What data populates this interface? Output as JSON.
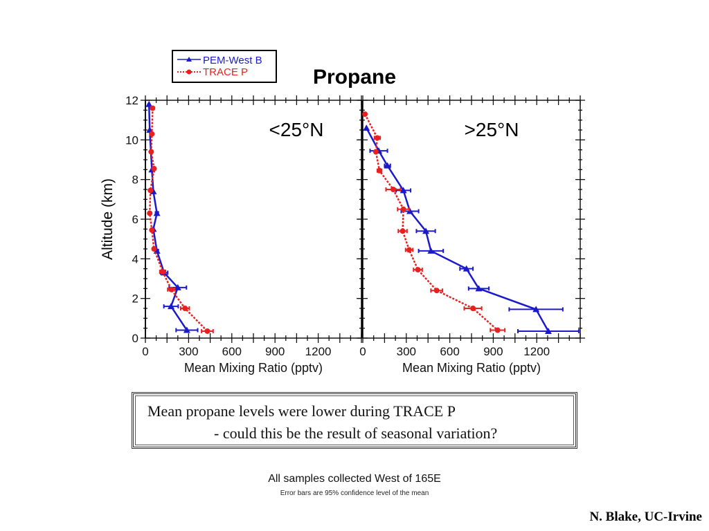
{
  "slide": {
    "title": "Propane",
    "note_line1": "Mean propane levels were lower during TRACE P",
    "note_line2": "- could this be the result of seasonal variation?",
    "footer_main": "All samples collected West of 165E",
    "footer_sub": "Error bars are 95% confidence level of the mean",
    "credit": "N. Blake, UC-Irvine"
  },
  "chart_data": [
    {
      "type": "line",
      "panel_label": "<25°N",
      "xlabel": "Mean Mixing Ratio (pptv)",
      "ylabel": "Altitude (km)",
      "xlim": [
        0,
        1500
      ],
      "ylim": [
        0,
        12
      ],
      "x_ticks": [
        0,
        300,
        600,
        900,
        1200
      ],
      "y_ticks": [
        0,
        2,
        4,
        6,
        8,
        10,
        12
      ],
      "legend": [
        {
          "name": "PEM-West B",
          "color": "#1a1acc",
          "marker": "triangle",
          "style": "solid"
        },
        {
          "name": "TRACE P",
          "color": "#e82020",
          "marker": "circle",
          "style": "dotted"
        }
      ],
      "legend_position": "top-left",
      "series": [
        {
          "name": "PEM-West B",
          "color": "#1a1acc",
          "points": [
            {
              "x": 25,
              "y": 11.8,
              "err": 0
            },
            {
              "x": 30,
              "y": 10.5,
              "err": 0
            },
            {
              "x": 45,
              "y": 8.5,
              "err": 0
            },
            {
              "x": 55,
              "y": 7.4,
              "err": 0
            },
            {
              "x": 80,
              "y": 6.3,
              "err": 10
            },
            {
              "x": 55,
              "y": 5.5,
              "err": 0
            },
            {
              "x": 80,
              "y": 4.4,
              "err": 10
            },
            {
              "x": 130,
              "y": 3.3,
              "err": 25
            },
            {
              "x": 225,
              "y": 2.55,
              "err": 60
            },
            {
              "x": 178,
              "y": 1.6,
              "err": 50
            },
            {
              "x": 288,
              "y": 0.4,
              "err": 75
            }
          ]
        },
        {
          "name": "TRACE P",
          "color": "#e82020",
          "points": [
            {
              "x": 50,
              "y": 11.6,
              "err": 10
            },
            {
              "x": 45,
              "y": 10.3,
              "err": 0
            },
            {
              "x": 40,
              "y": 9.4,
              "err": 0
            },
            {
              "x": 60,
              "y": 8.55,
              "err": 0
            },
            {
              "x": 35,
              "y": 7.45,
              "err": 0
            },
            {
              "x": 30,
              "y": 6.3,
              "err": 0
            },
            {
              "x": 45,
              "y": 5.45,
              "err": 0
            },
            {
              "x": 60,
              "y": 4.5,
              "err": 0
            },
            {
              "x": 120,
              "y": 3.35,
              "err": 20
            },
            {
              "x": 180,
              "y": 2.45,
              "err": 25
            },
            {
              "x": 275,
              "y": 1.5,
              "err": 30
            },
            {
              "x": 430,
              "y": 0.35,
              "err": 40
            }
          ]
        }
      ]
    },
    {
      "type": "line",
      "panel_label": ">25°N",
      "xlabel": "Mean Mixing Ratio (pptv)",
      "ylabel": "Altitude (km)",
      "xlim": [
        0,
        1500
      ],
      "ylim": [
        0,
        12
      ],
      "x_ticks": [
        0,
        300,
        600,
        900,
        1200
      ],
      "y_ticks": [
        0,
        2,
        4,
        6,
        8,
        10,
        12
      ],
      "series": [
        {
          "name": "PEM-West B",
          "color": "#1a1acc",
          "points": [
            {
              "x": 25,
              "y": 10.6,
              "err": 0
            },
            {
              "x": 110,
              "y": 9.45,
              "err": 60
            },
            {
              "x": 170,
              "y": 8.7,
              "err": 20
            },
            {
              "x": 280,
              "y": 7.45,
              "err": 50
            },
            {
              "x": 325,
              "y": 6.4,
              "err": 60
            },
            {
              "x": 435,
              "y": 5.4,
              "err": 65
            },
            {
              "x": 470,
              "y": 4.4,
              "err": 85
            },
            {
              "x": 715,
              "y": 3.5,
              "err": 45
            },
            {
              "x": 800,
              "y": 2.5,
              "err": 70
            },
            {
              "x": 1195,
              "y": 1.45,
              "err": 185
            },
            {
              "x": 1280,
              "y": 0.35,
              "err": 210
            }
          ]
        },
        {
          "name": "TRACE P",
          "color": "#e82020",
          "points": [
            {
              "x": 15,
              "y": 11.3,
              "err": 0
            },
            {
              "x": 100,
              "y": 10.1,
              "err": 20
            },
            {
              "x": 90,
              "y": 9.4,
              "err": 0
            },
            {
              "x": 115,
              "y": 8.45,
              "err": 15
            },
            {
              "x": 210,
              "y": 7.5,
              "err": 50
            },
            {
              "x": 280,
              "y": 6.5,
              "err": 40
            },
            {
              "x": 275,
              "y": 5.4,
              "err": 30
            },
            {
              "x": 320,
              "y": 4.45,
              "err": 25
            },
            {
              "x": 380,
              "y": 3.45,
              "err": 30
            },
            {
              "x": 510,
              "y": 2.4,
              "err": 40
            },
            {
              "x": 760,
              "y": 1.5,
              "err": 60
            },
            {
              "x": 930,
              "y": 0.4,
              "err": 50
            }
          ]
        }
      ]
    }
  ]
}
